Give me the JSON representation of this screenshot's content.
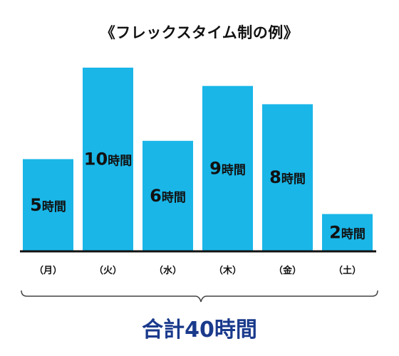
{
  "chart_data": {
    "type": "bar",
    "title": "《フレックスタイム制の例》",
    "categories": [
      "（月）",
      "（火）",
      "（水）",
      "（木）",
      "（金）",
      "（土）"
    ],
    "values": [
      5,
      10,
      6,
      9,
      8,
      2
    ],
    "value_unit": "時間",
    "ylim": [
      0,
      10
    ],
    "grid": false,
    "bar_color": "#1ab6e8",
    "total_label": "合計40時間",
    "total_color": "#1a3a8c"
  }
}
